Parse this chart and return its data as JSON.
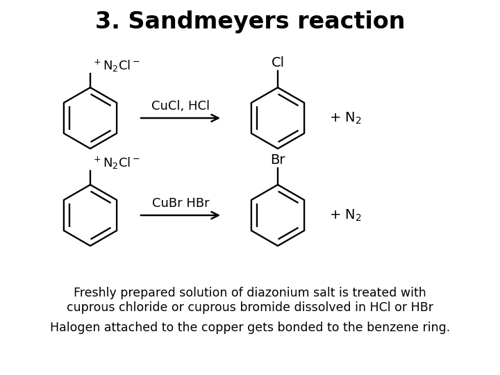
{
  "title": "3. Sandmeyers reaction",
  "title_fontsize": 24,
  "title_fontweight": "bold",
  "bg_color": "#ffffff",
  "text_color": "#000000",
  "reaction1_reactant_label": "$^+$N$_2$Cl$^-$",
  "reaction1_reagent": "CuCl, HCl",
  "reaction1_product_label": "Cl",
  "reaction1_byproduct": "+ N$_2$",
  "reaction2_reactant_label": "$^+$N$_2$Cl$^-$",
  "reaction2_reagent": "CuBr HBr",
  "reaction2_product_label": "Br",
  "reaction2_byproduct": "+ N$_2$",
  "footnote1": "Freshly prepared solution of diazonium salt is treated with",
  "footnote2": "cuprous chloride or cuprous bromide dissolved in HCl or HBr",
  "footnote3": "Halogen attached to the copper gets bonded to the benzene ring.",
  "footnote_fontsize": 12.5,
  "reagent_fontsize": 13,
  "label_fontsize": 14,
  "byproduct_fontsize": 14
}
